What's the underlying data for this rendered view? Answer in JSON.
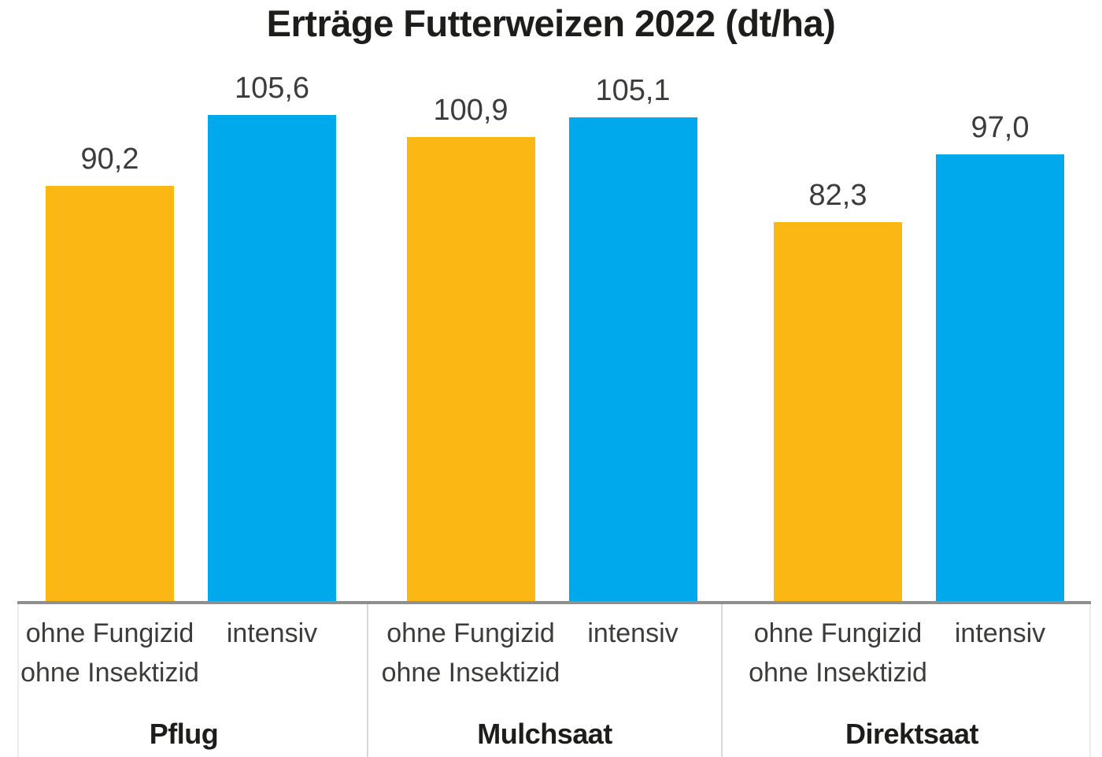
{
  "page": {
    "background": "#ffffff"
  },
  "chart_data": {
    "type": "bar",
    "title": "Erträge Futterweizen 2022 (dt/ha)",
    "unit": "dt/ha",
    "categories": [
      "Pflug",
      "Mulchsaat",
      "Direktsaat"
    ],
    "series": [
      {
        "name": "ohne Fungizid ohne Insektizid",
        "label_lines": [
          "ohne Fungizid",
          "ohne Insektizid"
        ],
        "color": "#FBB713",
        "values": [
          90.2,
          100.9,
          82.3
        ],
        "value_labels": [
          "90,2",
          "100,9",
          "82,3"
        ]
      },
      {
        "name": "intensiv",
        "label_lines": [
          "intensiv"
        ],
        "color": "#00A9EC",
        "values": [
          105.6,
          105.1,
          97.0
        ],
        "value_labels": [
          "105,6",
          "105,1",
          "97,0"
        ]
      }
    ],
    "xlabel": "",
    "ylabel": "",
    "ylim": [
      0,
      110
    ],
    "grid": false,
    "legend": "none",
    "y_axis_shown": false,
    "value_labels_shown": true,
    "axis_line_color": "#8f8f8f",
    "divider_color": "#d8d8d8",
    "edge_divider_color": "#ececec",
    "title_color": "#1d1d1b",
    "value_label_color": "#3c3c3b",
    "tick_label_color": "#3c3c3b"
  }
}
